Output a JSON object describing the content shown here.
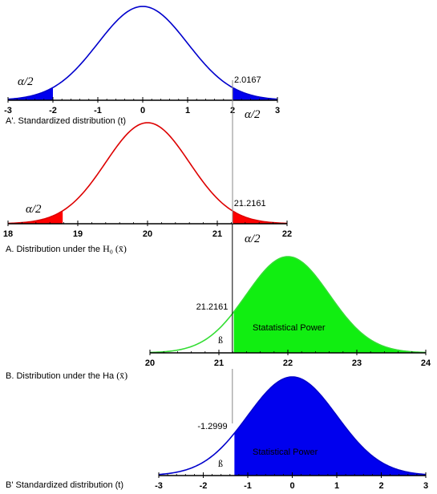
{
  "chart_data": [
    {
      "id": "a_prime",
      "type": "area",
      "caption": "A'. Standardized distribution (t)",
      "x_range": [
        -3,
        3
      ],
      "ticks": [
        -3,
        -2,
        -1,
        0,
        1,
        2,
        3
      ],
      "mean": 0,
      "sd": 1,
      "cutoff_low": -2,
      "cutoff_high": 2,
      "cutoff_label": "2.0167",
      "alpha_label": "α/2",
      "alpha_label_right": "α/2",
      "curve_color": "#0000cc",
      "fill_color": "#0000ee",
      "shaded": [
        "left_tail",
        "right_tail"
      ]
    },
    {
      "id": "a",
      "type": "area",
      "caption_prefix": "A. Distribution under the ",
      "caption_symbol": "H₀ (x̄)",
      "x_range": [
        18,
        22
      ],
      "ticks": [
        18,
        19,
        20,
        21,
        22
      ],
      "mean": 20,
      "sd": 0.6,
      "cutoff_low": 18.7839,
      "cutoff_high": 21.2161,
      "cutoff_label": "21.2161",
      "alpha_label": "α/2",
      "alpha_label_right": "α/2",
      "curve_color": "#dd0000",
      "fill_color": "#ff0000",
      "shaded": [
        "left_tail",
        "right_tail"
      ]
    },
    {
      "id": "b",
      "type": "area",
      "caption_prefix": "B. Distribution under the Ha ",
      "caption_symbol": "(x̄)",
      "x_range": [
        20,
        24
      ],
      "ticks": [
        20,
        21,
        22,
        23,
        24
      ],
      "mean": 22,
      "sd": 0.6,
      "cutoff_high": 21.2161,
      "cutoff_label": "21.2161",
      "beta_label": "ß",
      "power_label": "Statatistical Power",
      "curve_color": "#33dd33",
      "fill_color": "#11ee11",
      "shaded": [
        "right_of_cutoff"
      ]
    },
    {
      "id": "b_prime",
      "type": "area",
      "caption": "B' Standardized distribution (t)",
      "x_range": [
        -3,
        3
      ],
      "ticks": [
        -3,
        -2,
        -1,
        0,
        1,
        2,
        3
      ],
      "mean": 0,
      "sd": 1,
      "cutoff_high": -1.2999,
      "cutoff_label": "-1.2999",
      "beta_label": "ß",
      "power_label": "Statistical Power",
      "curve_color": "#0000cc",
      "fill_color": "#0000ee",
      "shaded": [
        "right_of_cutoff"
      ]
    }
  ]
}
